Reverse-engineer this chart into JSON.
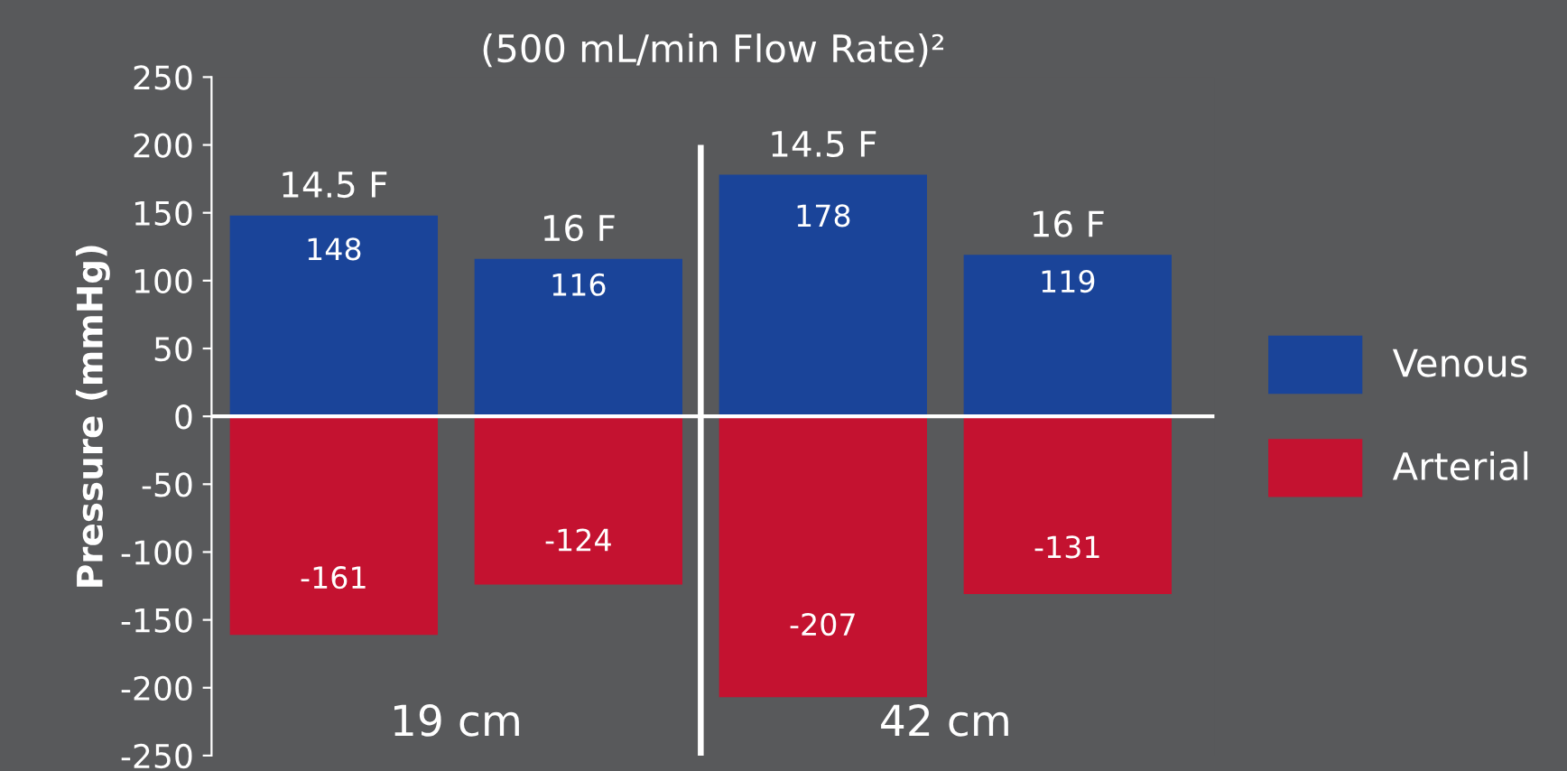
{
  "chart_data": {
    "type": "bar",
    "title": "(500 mL/min Flow Rate)²",
    "ylabel": "Pressure (mmHg)",
    "categories": [
      "14.5 F",
      "16 F",
      "14.5 F",
      "16 F"
    ],
    "series": [
      {
        "name": "Venous",
        "color": "#1a4499",
        "values": [
          148,
          116,
          178,
          119
        ]
      },
      {
        "name": "Arterial",
        "color": "#c41230",
        "values": [
          -161,
          -124,
          -207,
          -131
        ]
      }
    ],
    "stacked": true,
    "data_labels": true,
    "ylim": [
      -250,
      250
    ],
    "yticks": [
      -250,
      -200,
      -150,
      -100,
      -50,
      0,
      50,
      100,
      150,
      200,
      250
    ],
    "annotations": [
      "19 cm",
      "42 cm"
    ],
    "ref_lines": [
      {
        "axis": "y",
        "value": 0,
        "color": "#ffffff"
      }
    ],
    "grid": false,
    "legend": "right"
  }
}
